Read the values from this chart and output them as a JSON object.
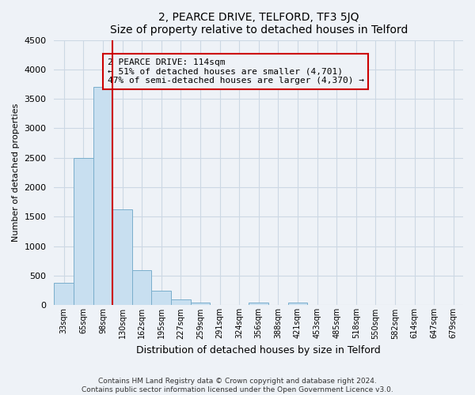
{
  "title": "2, PEARCE DRIVE, TELFORD, TF3 5JQ",
  "subtitle": "Size of property relative to detached houses in Telford",
  "xlabel": "Distribution of detached houses by size in Telford",
  "ylabel": "Number of detached properties",
  "bar_labels": [
    "33sqm",
    "65sqm",
    "98sqm",
    "130sqm",
    "162sqm",
    "195sqm",
    "227sqm",
    "259sqm",
    "291sqm",
    "324sqm",
    "356sqm",
    "388sqm",
    "421sqm",
    "453sqm",
    "485sqm",
    "518sqm",
    "550sqm",
    "582sqm",
    "614sqm",
    "647sqm",
    "679sqm"
  ],
  "bar_values": [
    375,
    2500,
    3700,
    1625,
    600,
    250,
    100,
    50,
    0,
    0,
    50,
    0,
    50,
    0,
    0,
    0,
    0,
    0,
    0,
    0,
    0
  ],
  "bar_color": "#c8dff0",
  "bar_edge_color": "#7aaecc",
  "ylim": [
    0,
    4500
  ],
  "yticks": [
    0,
    500,
    1000,
    1500,
    2000,
    2500,
    3000,
    3500,
    4000,
    4500
  ],
  "vline_bar_index": 3,
  "annotation_box_text": "2 PEARCE DRIVE: 114sqm\n← 51% of detached houses are smaller (4,701)\n47% of semi-detached houses are larger (4,370) →",
  "box_edge_color": "#cc0000",
  "vline_color": "#cc0000",
  "footer_line1": "Contains HM Land Registry data © Crown copyright and database right 2024.",
  "footer_line2": "Contains public sector information licensed under the Open Government Licence v3.0.",
  "bg_color": "#eef2f7",
  "grid_color": "#ccd8e4"
}
